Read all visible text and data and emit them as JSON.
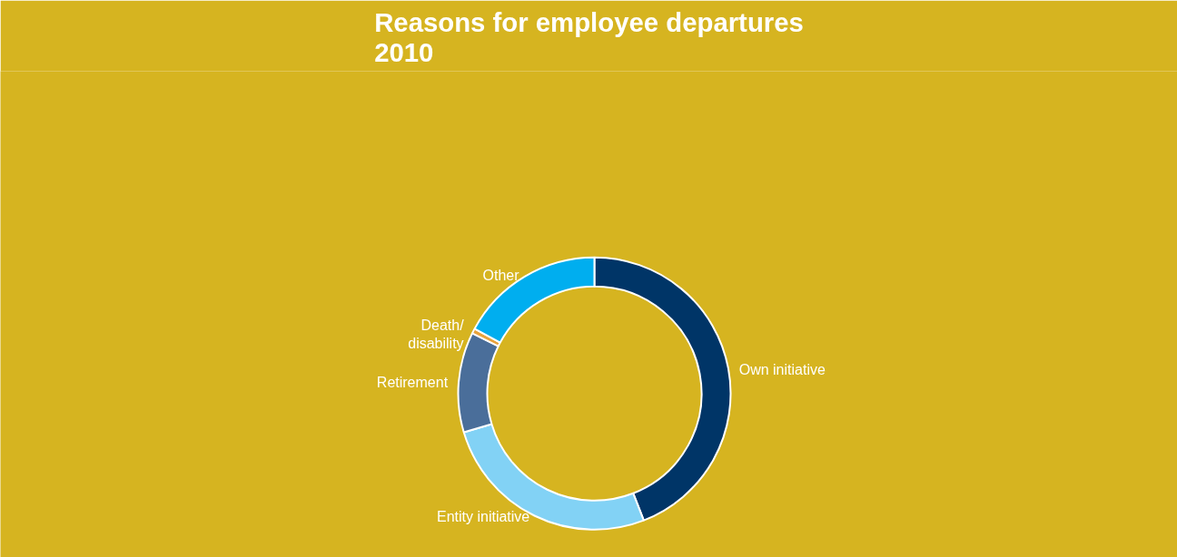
{
  "chart_data": {
    "type": "donut",
    "title": "Reasons for employee departures\n2010",
    "categories": [
      "Own initiative",
      "Entity initiative",
      "Retirement",
      "Death/\ndisability",
      "Other"
    ],
    "values": [
      44.1,
      26.3,
      11.9,
      0.6,
      17.1
    ],
    "colors": [
      "#003567",
      "#82d2f5",
      "#4a6e9a",
      "#e8a33c",
      "#00aeef"
    ]
  }
}
